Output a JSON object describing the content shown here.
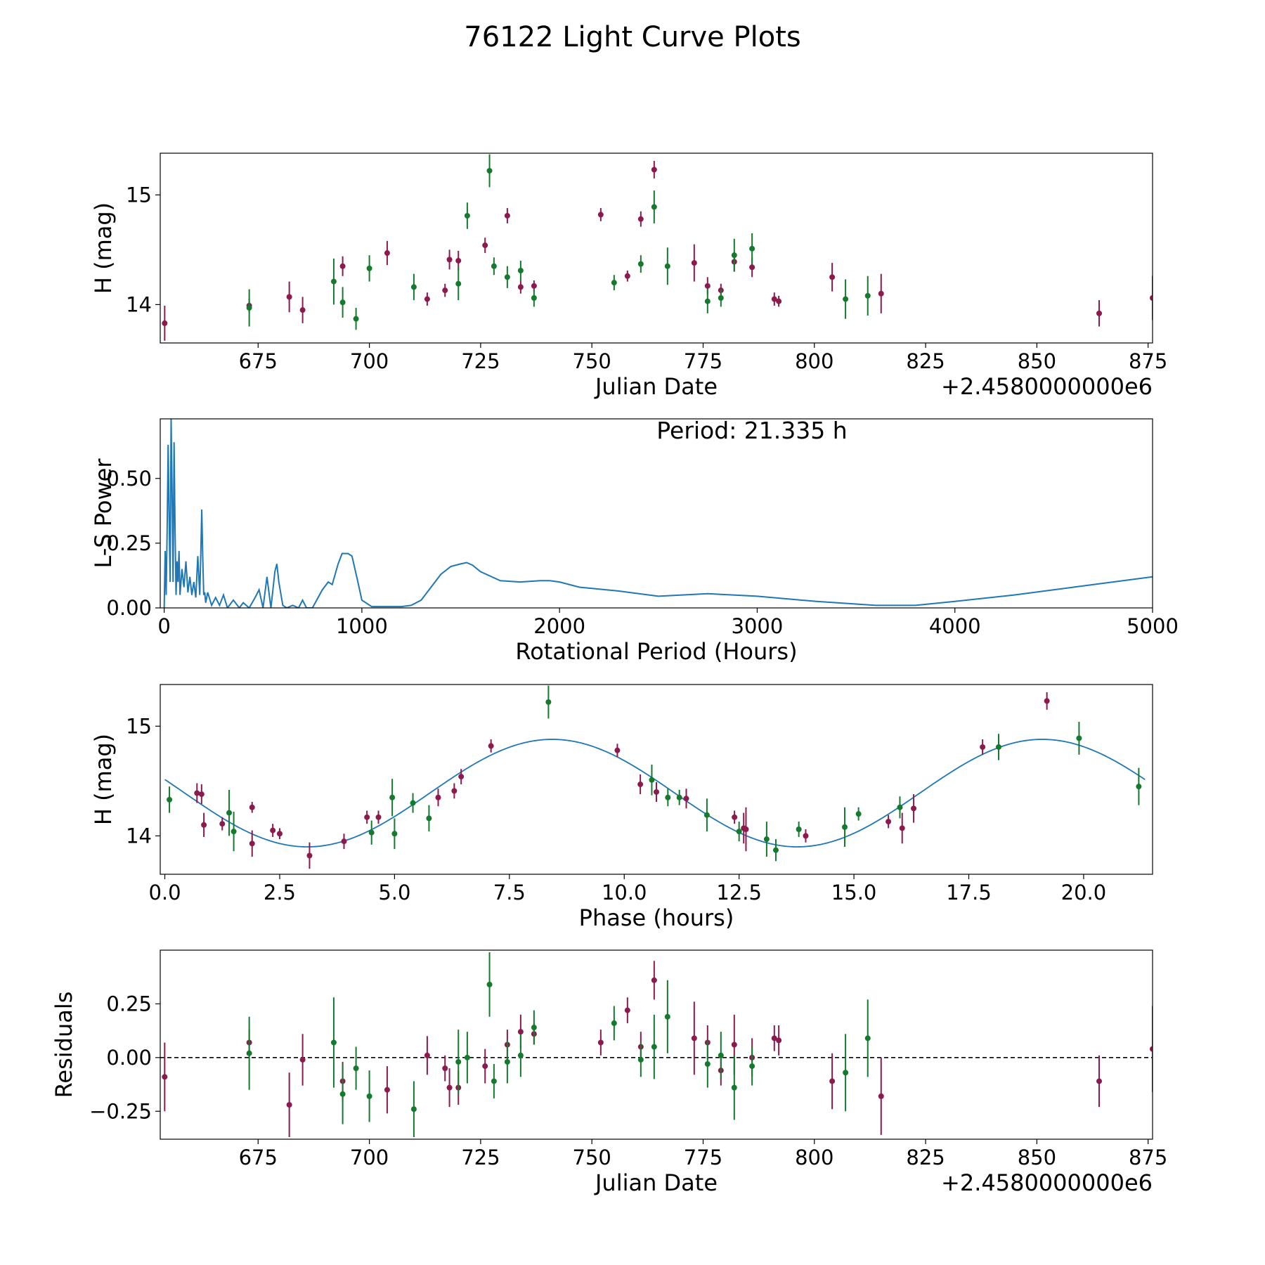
{
  "title": "76122 Light Curve Plots",
  "colors": {
    "series_a": "#8b1a4e",
    "series_b": "#157a2e",
    "curve": "#1f77b4",
    "zero_line": "#000000"
  },
  "chart_data": [
    {
      "type": "scatter",
      "name": "light-curve",
      "xlabel": "Julian Date",
      "ylabel": "H (mag)",
      "x_offset_label": "+2.4580000000e6",
      "xlim": [
        653,
        876
      ],
      "ylim": [
        13.65,
        15.38
      ],
      "xticks": [
        675,
        700,
        725,
        750,
        775,
        800,
        825,
        850,
        875
      ],
      "yticks": [
        14,
        15
      ],
      "series": [
        {
          "name": "A",
          "color": "#8b1a4e",
          "points": [
            [
              654,
              13.83,
              0.16
            ],
            [
              673,
              13.99,
              0.06
            ],
            [
              682,
              14.07,
              0.14
            ],
            [
              685,
              13.95,
              0.12
            ],
            [
              694,
              14.35,
              0.09
            ],
            [
              704,
              14.47,
              0.11
            ],
            [
              713,
              14.05,
              0.06
            ],
            [
              717,
              14.13,
              0.06
            ],
            [
              718,
              14.41,
              0.09
            ],
            [
              720,
              14.4,
              0.09
            ],
            [
              726,
              14.54,
              0.07
            ],
            [
              731,
              14.81,
              0.07
            ],
            [
              734,
              14.16,
              0.06
            ],
            [
              737,
              14.17,
              0.05
            ],
            [
              752,
              14.82,
              0.06
            ],
            [
              758,
              14.26,
              0.05
            ],
            [
              761,
              14.78,
              0.07
            ],
            [
              764,
              15.23,
              0.08
            ],
            [
              773,
              14.38,
              0.17
            ],
            [
              776,
              14.17,
              0.08
            ],
            [
              779,
              14.13,
              0.06
            ],
            [
              782,
              14.39,
              0.09
            ],
            [
              786,
              14.34,
              0.09
            ],
            [
              791,
              14.05,
              0.06
            ],
            [
              792,
              14.03,
              0.05
            ],
            [
              804,
              14.25,
              0.13
            ],
            [
              815,
              14.1,
              0.18
            ],
            [
              864,
              13.92,
              0.12
            ],
            [
              876,
              14.06,
              0.2
            ]
          ]
        },
        {
          "name": "B",
          "color": "#157a2e",
          "points": [
            [
              673,
              13.97,
              0.17
            ],
            [
              692,
              14.21,
              0.21
            ],
            [
              694,
              14.02,
              0.14
            ],
            [
              697,
              13.87,
              0.1
            ],
            [
              700,
              14.33,
              0.12
            ],
            [
              710,
              14.16,
              0.12
            ],
            [
              720,
              14.19,
              0.15
            ],
            [
              722,
              14.81,
              0.12
            ],
            [
              727,
              15.22,
              0.15
            ],
            [
              728,
              14.35,
              0.08
            ],
            [
              731,
              14.25,
              0.1
            ],
            [
              734,
              14.31,
              0.09
            ],
            [
              737,
              14.06,
              0.08
            ],
            [
              755,
              14.2,
              0.07
            ],
            [
              761,
              14.37,
              0.08
            ],
            [
              764,
              14.89,
              0.15
            ],
            [
              767,
              14.35,
              0.17
            ],
            [
              776,
              14.03,
              0.11
            ],
            [
              779,
              14.06,
              0.08
            ],
            [
              782,
              14.45,
              0.15
            ],
            [
              786,
              14.51,
              0.14
            ],
            [
              807,
              14.05,
              0.18
            ],
            [
              812,
              14.08,
              0.18
            ]
          ]
        }
      ]
    },
    {
      "type": "line",
      "name": "periodogram",
      "xlabel": "Rotational Period (Hours)",
      "ylabel": "L-S Power",
      "annotation": "Period: 21.335 h",
      "xlim": [
        -20,
        5000
      ],
      "ylim": [
        0,
        0.73
      ],
      "xticks": [
        0,
        1000,
        2000,
        3000,
        4000,
        5000
      ],
      "yticks": [
        0.0,
        0.25,
        0.5
      ],
      "ytick_labels": [
        "0.00",
        "0.25",
        "0.50"
      ],
      "x": [
        0,
        5,
        10,
        15,
        20,
        25,
        30,
        35,
        40,
        45,
        50,
        55,
        60,
        65,
        70,
        75,
        80,
        90,
        100,
        110,
        120,
        130,
        140,
        150,
        160,
        170,
        180,
        185,
        190,
        195,
        200,
        205,
        210,
        220,
        240,
        260,
        280,
        300,
        320,
        350,
        380,
        400,
        430,
        460,
        480,
        500,
        510,
        520,
        540,
        560,
        570,
        580,
        600,
        620,
        650,
        680,
        700,
        720,
        750,
        800,
        830,
        850,
        880,
        900,
        930,
        950,
        980,
        1000,
        1050,
        1100,
        1150,
        1200,
        1250,
        1300,
        1350,
        1400,
        1450,
        1500,
        1530,
        1560,
        1600,
        1700,
        1800,
        1900,
        1950,
        2000,
        2100,
        2300,
        2500,
        2750,
        3000,
        3300,
        3600,
        3800,
        4000,
        4300,
        4600,
        5000
      ],
      "y": [
        0.0,
        0.22,
        0.05,
        0.3,
        0.63,
        0.35,
        0.1,
        0.73,
        0.45,
        0.1,
        0.64,
        0.3,
        0.05,
        0.18,
        0.1,
        0.22,
        0.05,
        0.15,
        0.08,
        0.18,
        0.06,
        0.12,
        0.05,
        0.1,
        0.04,
        0.2,
        0.05,
        0.2,
        0.38,
        0.2,
        0.05,
        0.06,
        0.02,
        0.06,
        0.01,
        0.04,
        0.01,
        0.05,
        0.0,
        0.03,
        0.0,
        0.02,
        0.0,
        0.04,
        0.07,
        0.0,
        0.06,
        0.12,
        0.0,
        0.14,
        0.17,
        0.1,
        0.01,
        0.0,
        0.01,
        0.0,
        0.03,
        0.0,
        0.0,
        0.07,
        0.1,
        0.09,
        0.17,
        0.21,
        0.21,
        0.2,
        0.1,
        0.03,
        0.005,
        0.005,
        0.005,
        0.005,
        0.01,
        0.03,
        0.08,
        0.13,
        0.16,
        0.17,
        0.175,
        0.165,
        0.14,
        0.105,
        0.1,
        0.105,
        0.105,
        0.1,
        0.08,
        0.065,
        0.045,
        0.055,
        0.045,
        0.025,
        0.01,
        0.01,
        0.025,
        0.05,
        0.08,
        0.12
      ]
    },
    {
      "type": "scatter",
      "name": "phased-light-curve",
      "xlabel": "Phase (hours)",
      "ylabel": "H (mag)",
      "xlim": [
        -0.1,
        21.5
      ],
      "ylim": [
        13.65,
        15.38
      ],
      "xticks": [
        0.0,
        2.5,
        5.0,
        7.5,
        10.0,
        12.5,
        15.0,
        17.5,
        20.0
      ],
      "xtick_labels": [
        "0.0",
        "2.5",
        "5.0",
        "7.5",
        "10.0",
        "12.5",
        "15.0",
        "17.5",
        "20.0"
      ],
      "yticks": [
        14,
        15
      ],
      "model": {
        "mean": 14.39,
        "amplitude": 0.49,
        "period_hours": 10.667,
        "min_phase_hours": 3.1,
        "x_range": [
          0.0,
          21.335
        ]
      },
      "series": [
        {
          "name": "A",
          "color": "#8b1a4e",
          "points": [
            [
              0.7,
              14.39,
              0.09
            ],
            [
              0.8,
              14.38,
              0.09
            ],
            [
              0.85,
              14.1,
              0.11
            ],
            [
              1.25,
              14.11,
              0.06
            ],
            [
              1.9,
              14.26,
              0.05
            ],
            [
              1.9,
              13.93,
              0.12
            ],
            [
              2.35,
              14.05,
              0.06
            ],
            [
              2.5,
              14.02,
              0.05
            ],
            [
              3.15,
              13.82,
              0.12
            ],
            [
              3.9,
              13.95,
              0.07
            ],
            [
              4.4,
              14.17,
              0.06
            ],
            [
              4.65,
              14.17,
              0.06
            ],
            [
              5.95,
              14.35,
              0.08
            ],
            [
              6.3,
              14.41,
              0.07
            ],
            [
              6.45,
              14.54,
              0.07
            ],
            [
              7.1,
              14.82,
              0.06
            ],
            [
              9.85,
              14.78,
              0.06
            ],
            [
              10.35,
              14.47,
              0.09
            ],
            [
              10.7,
              14.4,
              0.09
            ],
            [
              11.35,
              14.34,
              0.09
            ],
            [
              12.4,
              14.17,
              0.06
            ],
            [
              12.6,
              14.07,
              0.14
            ],
            [
              12.65,
              14.06,
              0.2
            ],
            [
              13.95,
              14.0,
              0.06
            ],
            [
              15.75,
              14.13,
              0.06
            ],
            [
              16.05,
              14.07,
              0.14
            ],
            [
              16.3,
              14.25,
              0.13
            ],
            [
              17.8,
              14.81,
              0.07
            ],
            [
              19.2,
              15.23,
              0.08
            ]
          ]
        },
        {
          "name": "B",
          "color": "#157a2e",
          "points": [
            [
              0.1,
              14.33,
              0.12
            ],
            [
              1.4,
              14.21,
              0.21
            ],
            [
              1.5,
              14.04,
              0.18
            ],
            [
              4.5,
              14.03,
              0.11
            ],
            [
              4.95,
              14.35,
              0.17
            ],
            [
              5.0,
              14.02,
              0.14
            ],
            [
              5.4,
              14.3,
              0.09
            ],
            [
              5.75,
              14.16,
              0.12
            ],
            [
              8.35,
              15.22,
              0.15
            ],
            [
              10.6,
              14.51,
              0.14
            ],
            [
              10.95,
              14.35,
              0.08
            ],
            [
              11.2,
              14.35,
              0.07
            ],
            [
              11.8,
              14.19,
              0.15
            ],
            [
              12.5,
              14.04,
              0.09
            ],
            [
              13.1,
              13.97,
              0.16
            ],
            [
              13.3,
              13.87,
              0.1
            ],
            [
              13.8,
              14.06,
              0.07
            ],
            [
              14.8,
              14.08,
              0.18
            ],
            [
              15.1,
              14.2,
              0.06
            ],
            [
              16.0,
              14.26,
              0.1
            ],
            [
              18.15,
              14.81,
              0.12
            ],
            [
              19.9,
              14.89,
              0.15
            ],
            [
              21.2,
              14.45,
              0.17
            ]
          ]
        }
      ]
    },
    {
      "type": "scatter",
      "name": "residuals",
      "xlabel": "Julian Date",
      "ylabel": "Residuals",
      "x_offset_label": "+2.4580000000e6",
      "xlim": [
        653,
        876
      ],
      "ylim": [
        -0.38,
        0.5
      ],
      "xticks": [
        675,
        700,
        725,
        750,
        775,
        800,
        825,
        850,
        875
      ],
      "yticks": [
        -0.25,
        0.0,
        0.25
      ],
      "ytick_labels": [
        "−0.25",
        "0.00",
        "0.25"
      ],
      "zero_line": 0,
      "series": [
        {
          "name": "A",
          "color": "#8b1a4e",
          "points": [
            [
              654,
              -0.09,
              0.16
            ],
            [
              673,
              0.07,
              0.06
            ],
            [
              682,
              -0.22,
              0.15
            ],
            [
              685,
              -0.01,
              0.12
            ],
            [
              694,
              -0.11,
              0.09
            ],
            [
              704,
              -0.15,
              0.11
            ],
            [
              713,
              0.01,
              0.09
            ],
            [
              717,
              -0.05,
              0.06
            ],
            [
              718,
              -0.14,
              0.09
            ],
            [
              720,
              -0.14,
              0.08
            ],
            [
              726,
              -0.04,
              0.08
            ],
            [
              731,
              0.06,
              0.07
            ],
            [
              734,
              0.12,
              0.08
            ],
            [
              737,
              0.11,
              0.05
            ],
            [
              752,
              0.07,
              0.06
            ],
            [
              758,
              0.22,
              0.06
            ],
            [
              761,
              0.05,
              0.07
            ],
            [
              764,
              0.36,
              0.09
            ],
            [
              773,
              0.09,
              0.17
            ],
            [
              776,
              0.07,
              0.08
            ],
            [
              779,
              -0.06,
              0.07
            ],
            [
              782,
              0.06,
              0.14
            ],
            [
              786,
              0.0,
              0.09
            ],
            [
              791,
              0.09,
              0.06
            ],
            [
              792,
              0.08,
              0.07
            ],
            [
              804,
              -0.11,
              0.13
            ],
            [
              815,
              -0.18,
              0.18
            ],
            [
              864,
              -0.11,
              0.12
            ],
            [
              876,
              0.04,
              0.2
            ]
          ]
        },
        {
          "name": "B",
          "color": "#157a2e",
          "points": [
            [
              673,
              0.02,
              0.17
            ],
            [
              692,
              0.07,
              0.21
            ],
            [
              694,
              -0.17,
              0.14
            ],
            [
              697,
              -0.05,
              0.1
            ],
            [
              700,
              -0.18,
              0.12
            ],
            [
              710,
              -0.24,
              0.13
            ],
            [
              720,
              -0.02,
              0.15
            ],
            [
              722,
              0.0,
              0.12
            ],
            [
              727,
              0.34,
              0.15
            ],
            [
              728,
              -0.11,
              0.08
            ],
            [
              731,
              -0.02,
              0.1
            ],
            [
              734,
              0.01,
              0.1
            ],
            [
              737,
              0.14,
              0.08
            ],
            [
              755,
              0.16,
              0.08
            ],
            [
              761,
              -0.01,
              0.08
            ],
            [
              764,
              0.05,
              0.15
            ],
            [
              767,
              0.19,
              0.17
            ],
            [
              776,
              -0.03,
              0.11
            ],
            [
              779,
              0.01,
              0.11
            ],
            [
              782,
              -0.14,
              0.15
            ],
            [
              786,
              -0.04,
              0.09
            ],
            [
              807,
              -0.07,
              0.18
            ],
            [
              812,
              0.09,
              0.18
            ]
          ]
        }
      ]
    }
  ]
}
